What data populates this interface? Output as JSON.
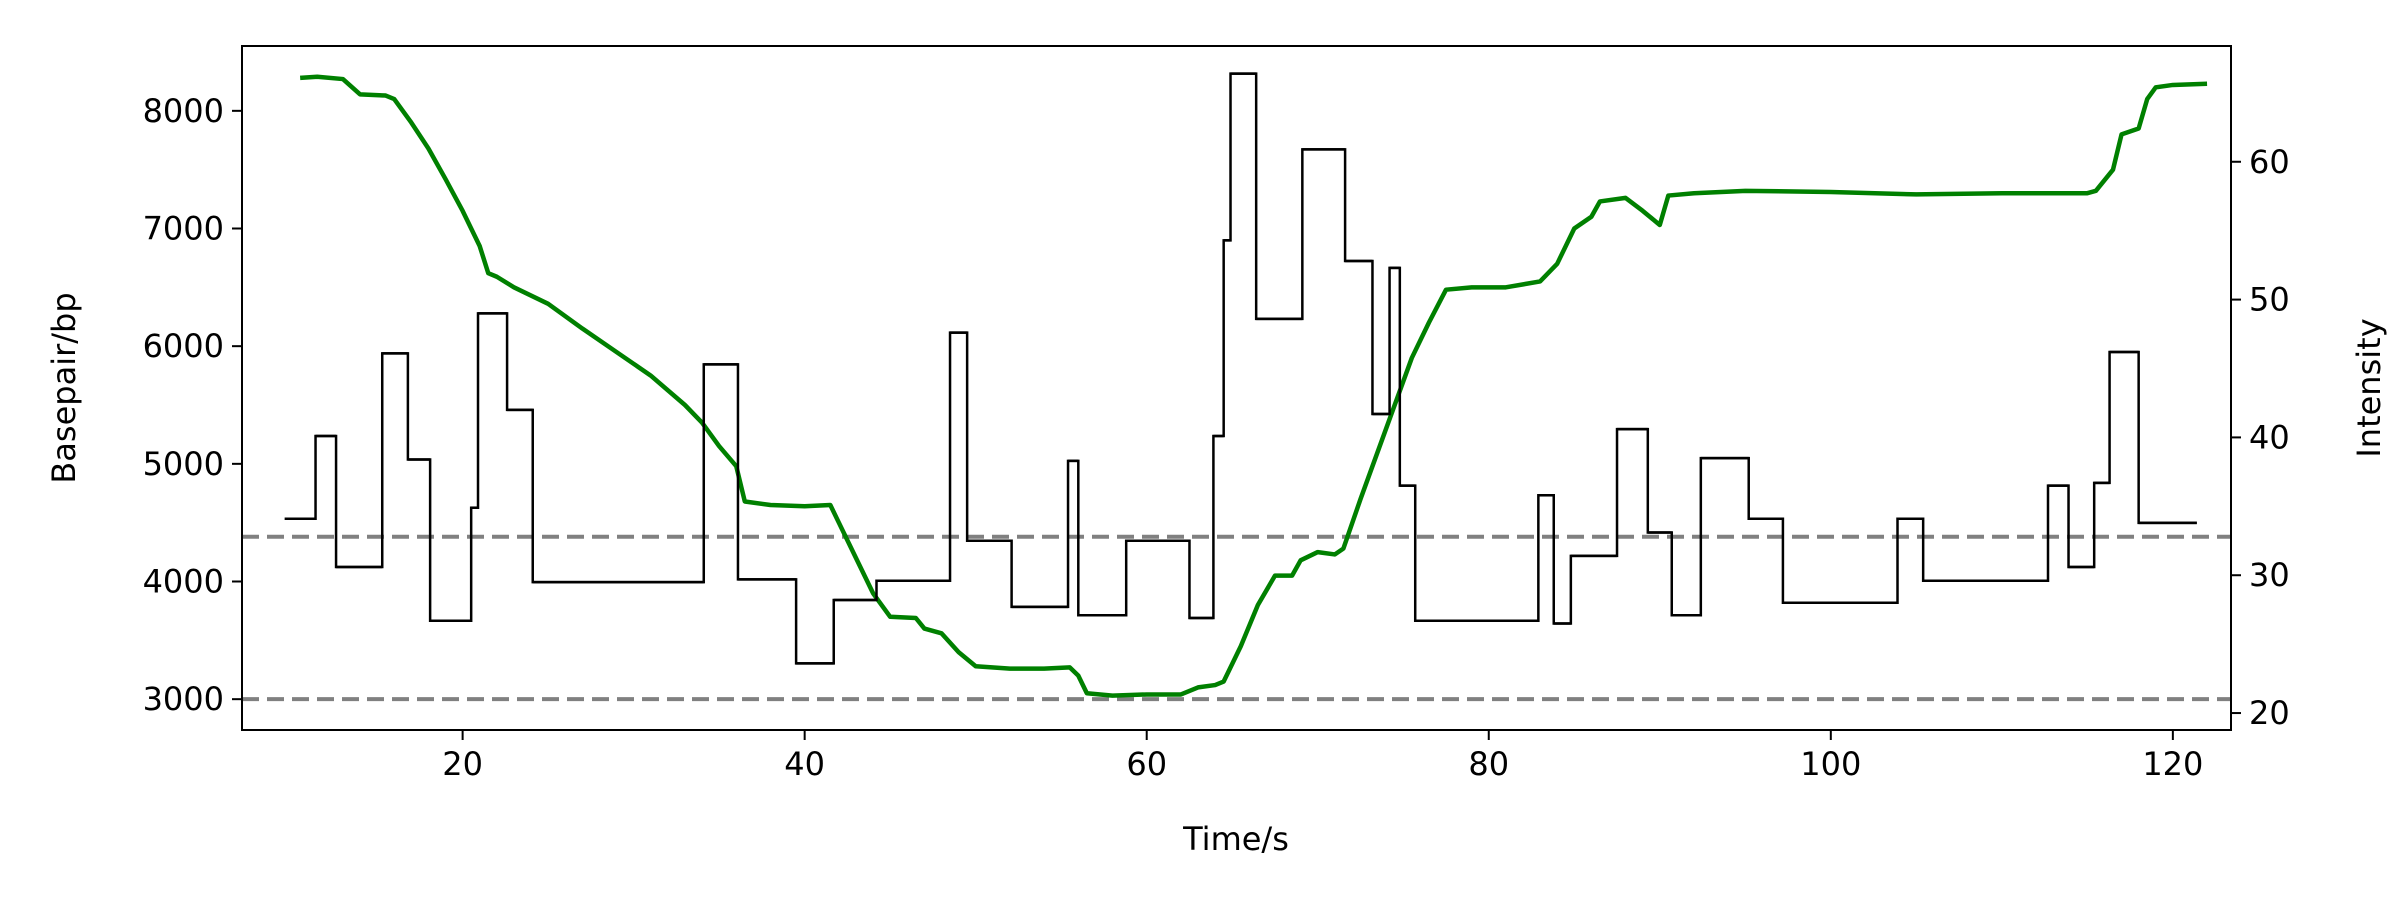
{
  "chart_data": {
    "type": "line",
    "xlabel": "Time/s",
    "ylabel": "Basepair/bp",
    "y2label": "Intensity",
    "xlim": [
      7.1,
      123.4
    ],
    "ylim": [
      2738,
      8551
    ],
    "y2lim": [
      18.77,
      68.4
    ],
    "xticks": [
      20,
      40,
      60,
      80,
      100,
      120
    ],
    "yticks": [
      3000,
      4000,
      5000,
      6000,
      7000,
      8000
    ],
    "y2ticks": [
      20,
      30,
      40,
      50,
      60
    ],
    "ylabel_color": "#008000",
    "hlines": [
      4380,
      3000
    ],
    "hline_color": "#808080",
    "series": [
      {
        "name": "Basepair",
        "color": "#008000",
        "axis": "y",
        "x": [
          10.5,
          11.5,
          13,
          14,
          15.5,
          16,
          17,
          18,
          19,
          20,
          21,
          21.5,
          22,
          23,
          25,
          27,
          29,
          31,
          33,
          34,
          35,
          36,
          36.5,
          38,
          40,
          41.5,
          42,
          43,
          44,
          45,
          46.5,
          47,
          48,
          49,
          50,
          52,
          54,
          55.5,
          56,
          56.5,
          58,
          60,
          62,
          63,
          64,
          64.5,
          65.5,
          66.5,
          67.5,
          68.5,
          69,
          70,
          71,
          71.5,
          72.5,
          73.5,
          74.5,
          75.5,
          76.5,
          77.5,
          79,
          81,
          83,
          84,
          85,
          86,
          86.5,
          88,
          89,
          90,
          90.5,
          92,
          95,
          100,
          105,
          110,
          115,
          115.5,
          116.5,
          117,
          118,
          118.5,
          119,
          120,
          122
        ],
        "values": [
          8280,
          8290,
          8270,
          8140,
          8130,
          8100,
          7900,
          7680,
          7420,
          7150,
          6850,
          6620,
          6590,
          6500,
          6360,
          6150,
          5950,
          5750,
          5500,
          5350,
          5150,
          4980,
          4680,
          4650,
          4640,
          4650,
          4500,
          4200,
          3900,
          3700,
          3690,
          3600,
          3560,
          3400,
          3280,
          3260,
          3260,
          3270,
          3200,
          3050,
          3030,
          3040,
          3040,
          3100,
          3120,
          3150,
          3450,
          3800,
          4050,
          4050,
          4180,
          4250,
          4230,
          4280,
          4700,
          5100,
          5500,
          5900,
          6200,
          6480,
          6500,
          6500,
          6550,
          6700,
          7000,
          7100,
          7230,
          7260,
          7150,
          7030,
          7280,
          7300,
          7320,
          7310,
          7290,
          7300,
          7300,
          7320,
          7500,
          7800,
          7850,
          8100,
          8200,
          8220,
          8230
        ]
      },
      {
        "name": "Intensity",
        "color": "#000000",
        "axis": "y2",
        "drawstyle": "steps-post",
        "x": [
          9.6,
          11.4,
          12.6,
          15.3,
          16.8,
          18.1,
          20.5,
          20.9,
          22.6,
          24.1,
          34.1,
          36.1,
          39.5,
          41.7,
          44.2,
          48.5,
          49.5,
          52.1,
          55.4,
          56.0,
          58.8,
          62.5,
          63.9,
          64.5,
          64.9,
          66.4,
          69.1,
          71.6,
          73.2,
          74.2,
          74.8,
          75.7,
          82.9,
          83.8,
          84.8,
          87.5,
          89.3,
          90.7,
          92.4,
          95.2,
          97.2,
          103.9,
          105.4,
          112.7,
          113.9,
          115.4,
          116.3,
          118.0,
          121.4
        ],
        "values": [
          34.1,
          40.1,
          30.6,
          46.1,
          38.4,
          26.7,
          34.9,
          49.0,
          42.0,
          29.5,
          45.3,
          29.7,
          23.6,
          28.2,
          29.6,
          47.6,
          32.5,
          27.7,
          38.3,
          27.1,
          32.5,
          26.9,
          40.1,
          54.3,
          66.4,
          48.6,
          60.9,
          52.8,
          41.7,
          52.3,
          36.5,
          26.7,
          35.8,
          26.5,
          31.4,
          40.6,
          33.1,
          27.1,
          38.5,
          34.1,
          28.0,
          34.1,
          29.6,
          36.5,
          30.6,
          36.7,
          46.2,
          33.8,
          33.8
        ]
      }
    ]
  }
}
